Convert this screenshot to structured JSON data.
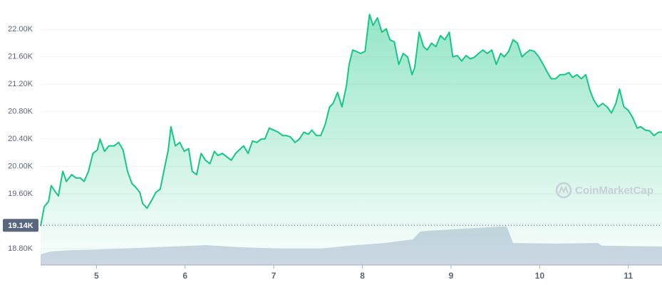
{
  "chart_data": {
    "type": "line",
    "xlim": [
      4.37,
      11.38
    ],
    "xticks": [
      5,
      6,
      7,
      8,
      9,
      10,
      11
    ],
    "ylim": [
      18560,
      22430
    ],
    "yticks": [
      {
        "value": 18800,
        "label": "18.80K"
      },
      {
        "value": 19600,
        "label": "19.60K"
      },
      {
        "value": 20000,
        "label": "20.00K"
      },
      {
        "value": 20400,
        "label": "20.40K"
      },
      {
        "value": 20800,
        "label": "20.80K"
      },
      {
        "value": 21200,
        "label": "21.20K"
      },
      {
        "value": 21600,
        "label": "21.60K"
      },
      {
        "value": 22000,
        "label": "22.00K"
      }
    ],
    "y2lim": [
      0,
      100
    ],
    "grid": true,
    "reference": {
      "value": 19140,
      "label": "19.14K"
    },
    "watermark": "CoinMarketCap",
    "series": [
      {
        "color": "#16c784",
        "x": [
          4.37,
          4.41,
          4.46,
          4.49,
          4.53,
          4.57,
          4.62,
          4.66,
          4.72,
          4.77,
          4.82,
          4.86,
          4.91,
          4.96,
          5.01,
          5.04,
          5.09,
          5.14,
          5.2,
          5.25,
          5.3,
          5.35,
          5.4,
          5.44,
          5.49,
          5.52,
          5.57,
          5.62,
          5.67,
          5.72,
          5.76,
          5.81,
          5.84,
          5.89,
          5.94,
          5.99,
          6.04,
          6.08,
          6.13,
          6.18,
          6.23,
          6.28,
          6.33,
          6.37,
          6.42,
          6.47,
          6.52,
          6.57,
          6.61,
          6.66,
          6.71,
          6.76,
          6.81,
          6.86,
          6.9,
          6.95,
          7.0,
          7.05,
          7.1,
          7.14,
          7.19,
          7.24,
          7.29,
          7.34,
          7.39,
          7.43,
          7.48,
          7.53,
          7.58,
          7.63,
          7.67,
          7.72,
          7.77,
          7.82,
          7.85,
          7.89,
          7.93,
          7.98,
          8.03,
          8.08,
          8.12,
          8.17,
          8.22,
          8.27,
          8.31,
          8.36,
          8.41,
          8.46,
          8.51,
          8.56,
          8.59,
          8.64,
          8.69,
          8.73,
          8.78,
          8.83,
          8.88,
          8.93,
          8.98,
          9.02,
          9.07,
          9.12,
          9.17,
          9.22,
          9.27,
          9.31,
          9.36,
          9.41,
          9.46,
          9.51,
          9.56,
          9.6,
          9.65,
          9.7,
          9.75,
          9.8,
          9.84,
          9.89,
          9.94,
          9.99,
          10.04,
          10.08,
          10.13,
          10.18,
          10.23,
          10.28,
          10.33,
          10.37,
          10.42,
          10.47,
          10.52,
          10.57,
          10.61,
          10.66,
          10.71,
          10.76,
          10.81,
          10.86,
          10.9,
          10.95,
          11.0,
          11.05,
          11.1,
          11.14,
          11.19,
          11.24,
          11.29,
          11.34,
          11.38
        ],
        "values": [
          19130,
          19410,
          19490,
          19720,
          19640,
          19570,
          19930,
          19780,
          19880,
          19830,
          19830,
          19780,
          19930,
          20190,
          20240,
          20400,
          20220,
          20300,
          20300,
          20350,
          20240,
          19930,
          19750,
          19700,
          19620,
          19460,
          19390,
          19500,
          19620,
          19670,
          19930,
          20240,
          20580,
          20300,
          20350,
          20220,
          20260,
          19930,
          19880,
          20190,
          20090,
          20040,
          20220,
          20160,
          20190,
          20140,
          20090,
          20190,
          20240,
          20300,
          20190,
          20370,
          20350,
          20400,
          20400,
          20560,
          20530,
          20500,
          20450,
          20450,
          20430,
          20350,
          20400,
          20500,
          20470,
          20530,
          20450,
          20450,
          20610,
          20870,
          20920,
          21080,
          20870,
          21180,
          21490,
          21700,
          21680,
          21650,
          21680,
          22220,
          22060,
          22170,
          21960,
          22010,
          21850,
          21820,
          21490,
          21650,
          21600,
          21340,
          21440,
          21960,
          21750,
          21700,
          21800,
          21750,
          21910,
          21850,
          21960,
          21600,
          21620,
          21540,
          21620,
          21570,
          21600,
          21650,
          21700,
          21650,
          21700,
          21490,
          21650,
          21600,
          21680,
          21850,
          21800,
          21600,
          21650,
          21700,
          21680,
          21600,
          21490,
          21390,
          21280,
          21280,
          21340,
          21340,
          21370,
          21300,
          21340,
          21280,
          21340,
          21100,
          20970,
          20870,
          20920,
          20870,
          20780,
          20920,
          21130,
          20870,
          20820,
          20710,
          20560,
          20580,
          20530,
          20520,
          20450,
          20500,
          20500
        ]
      },
      {
        "color": "#cfd6e4",
        "axis": "y2",
        "x": [
          4.37,
          4.48,
          4.68,
          5.04,
          5.52,
          5.84,
          6.24,
          6.65,
          7.13,
          7.53,
          7.85,
          8.25,
          8.57,
          8.65,
          8.73,
          9.14,
          9.54,
          9.63,
          9.7,
          10.18,
          10.66,
          10.7,
          11.38
        ],
        "values": [
          4.0,
          5.1,
          5.6,
          5.9,
          6.5,
          7.0,
          7.5,
          6.7,
          6.2,
          6.2,
          7.3,
          8.3,
          9.7,
          12.6,
          12.9,
          13.7,
          14.5,
          14.5,
          8.3,
          8.1,
          8.3,
          7.3,
          7.0
        ]
      }
    ]
  }
}
